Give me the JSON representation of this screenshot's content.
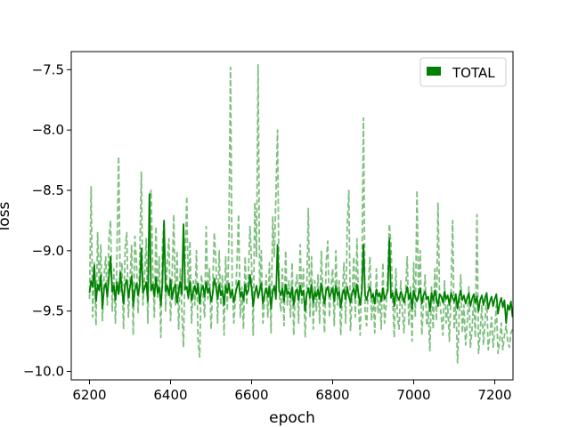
{
  "chart_data": {
    "type": "line",
    "title": "",
    "xlabel": "epoch",
    "ylabel": "loss",
    "xlim": [
      6155,
      7245
    ],
    "ylim": [
      -10.07,
      -7.35
    ],
    "x_ticks": [
      6200,
      6400,
      6600,
      6800,
      7000,
      7200
    ],
    "x_tick_labels": [
      "6200",
      "6400",
      "6600",
      "6800",
      "7000",
      "7200"
    ],
    "y_ticks": [
      -7.5,
      -8.0,
      -8.5,
      -9.0,
      -9.5,
      -10.0
    ],
    "y_tick_labels": [
      "−7.5",
      "−8.0",
      "−8.5",
      "−9.0",
      "−9.5",
      "−10.0"
    ],
    "grid": false,
    "legend_position": "top-right",
    "legend": [
      {
        "label": "TOTAL",
        "color": "#008000"
      }
    ],
    "series": [
      {
        "name": "TOTAL",
        "style": "solid",
        "color": "#008000",
        "x_start": 6200,
        "x_step": 4,
        "values": [
          -9.35,
          -9.25,
          -9.3,
          -9.12,
          -9.42,
          -9.28,
          -9.33,
          -9.2,
          -9.48,
          -9.31,
          -9.27,
          -9.38,
          -9.22,
          -9.05,
          -9.34,
          -9.29,
          -9.41,
          -9.26,
          -9.36,
          -9.18,
          -9.32,
          -9.44,
          -9.28,
          -9.24,
          -9.39,
          -9.3,
          -9.21,
          -9.46,
          -9.33,
          -9.27,
          -9.37,
          -9.29,
          -8.98,
          -9.35,
          -9.31,
          -9.26,
          -9.42,
          -8.53,
          -9.33,
          -9.28,
          -9.38,
          -9.22,
          -9.35,
          -9.3,
          -9.45,
          -9.27,
          -8.75,
          -9.34,
          -9.29,
          -9.37,
          -9.24,
          -9.4,
          -9.31,
          -9.28,
          -9.43,
          -9.33,
          -9.26,
          -9.36,
          -8.78,
          -9.32,
          -9.3,
          -9.39,
          -9.25,
          -9.41,
          -9.34,
          -9.29,
          -9.36,
          -9.27,
          -9.44,
          -9.32,
          -9.29,
          -9.38,
          -9.26,
          -9.35,
          -9.31,
          -9.42,
          -9.36,
          -9.23,
          -9.3,
          -9.4,
          -9.28,
          -9.37,
          -9.33,
          -9.45,
          -9.29,
          -9.35,
          -9.27,
          -9.39,
          -9.32,
          -9.43,
          -9.36,
          -9.3,
          -9.25,
          -9.38,
          -9.34,
          -9.41,
          -9.28,
          -9.36,
          -9.33,
          -9.2,
          -9.31,
          -9.46,
          -9.35,
          -9.29,
          -9.39,
          -9.33,
          -9.27,
          -9.44,
          -9.36,
          -9.31,
          -9.38,
          -9.3,
          -9.48,
          -9.34,
          -9.29,
          -9.4,
          -8.95,
          -9.33,
          -9.37,
          -9.31,
          -9.42,
          -9.28,
          -9.36,
          -9.34,
          -9.39,
          -9.3,
          -9.45,
          -9.35,
          -9.32,
          -9.41,
          -9.29,
          -9.37,
          -9.33,
          -9.5,
          -9.36,
          -9.31,
          -9.39,
          -9.28,
          -9.43,
          -9.34,
          -9.38,
          -9.32,
          -9.4,
          -9.27,
          -9.36,
          -9.44,
          -9.33,
          -9.3,
          -9.38,
          -9.35,
          -9.31,
          -9.42,
          -9.29,
          -9.37,
          -9.34,
          -9.47,
          -9.36,
          -9.32,
          -9.4,
          -9.3,
          -9.38,
          -9.43,
          -9.35,
          -9.31,
          -9.39,
          -9.28,
          -9.36,
          -9.45,
          -9.33,
          -8.95,
          -9.37,
          -9.41,
          -9.34,
          -9.3,
          -9.39,
          -9.36,
          -9.44,
          -9.32,
          -9.38,
          -9.35,
          -9.42,
          -9.31,
          -9.4,
          -9.37,
          -9.33,
          -8.9,
          -9.39,
          -9.35,
          -9.46,
          -9.32,
          -9.38,
          -9.41,
          -9.34,
          -9.37,
          -9.43,
          -9.36,
          -9.3,
          -9.4,
          -9.35,
          -9.48,
          -9.33,
          -9.38,
          -9.42,
          -9.36,
          -9.31,
          -9.44,
          -9.37,
          -9.34,
          -9.4,
          -9.38,
          -9.5,
          -9.35,
          -9.41,
          -9.33,
          -9.39,
          -9.46,
          -9.36,
          -9.38,
          -9.43,
          -9.34,
          -9.4,
          -9.37,
          -9.45,
          -9.35,
          -9.39,
          -9.42,
          -9.36,
          -9.48,
          -9.38,
          -9.33,
          -9.41,
          -9.37,
          -9.44,
          -9.39,
          -9.35,
          -9.46,
          -9.4,
          -9.36,
          -9.43,
          -9.38,
          -9.5,
          -9.41,
          -9.37,
          -9.45,
          -9.39,
          -9.35,
          -9.48,
          -9.42,
          -9.38,
          -9.46,
          -9.4,
          -9.36,
          -9.52,
          -9.44,
          -9.39,
          -9.47,
          -9.41,
          -9.6,
          -9.45,
          -9.49,
          -9.42,
          -9.55
        ]
      },
      {
        "name": "",
        "style": "dashed",
        "color": "#7fbf7f",
        "x_start": 6200,
        "x_step": 4,
        "values": [
          -9.4,
          -8.47,
          -9.55,
          -9.1,
          -9.62,
          -8.85,
          -9.3,
          -8.95,
          -9.58,
          -9.2,
          -9.05,
          -9.45,
          -8.9,
          -8.75,
          -9.5,
          -9.15,
          -9.6,
          -9.0,
          -8.22,
          -9.35,
          -9.1,
          -9.65,
          -8.98,
          -8.85,
          -9.55,
          -9.25,
          -8.95,
          -9.7,
          -8.88,
          -9.1,
          -9.52,
          -9.05,
          -8.35,
          -9.45,
          -9.2,
          -8.9,
          -9.6,
          -8.6,
          -8.5,
          -9.15,
          -9.55,
          -8.8,
          -9.4,
          -9.05,
          -9.72,
          -8.95,
          -8.75,
          -9.5,
          -9.1,
          -8.9,
          -9.58,
          -9.2,
          -8.7,
          -9.45,
          -9.0,
          -9.65,
          -9.15,
          -9.5,
          -9.8,
          -9.05,
          -8.55,
          -9.4,
          -8.92,
          -9.6,
          -9.25,
          -9.45,
          -9.0,
          -9.75,
          -9.88,
          -9.2,
          -9.35,
          -9.55,
          -8.8,
          -9.4,
          -9.15,
          -9.65,
          -9.3,
          -8.85,
          -9.1,
          -9.6,
          -9.0,
          -9.45,
          -9.2,
          -9.7,
          -9.05,
          -9.5,
          -8.9,
          -7.48,
          -9.25,
          -9.6,
          -9.4,
          -9.1,
          -8.7,
          -9.55,
          -9.3,
          -9.65,
          -9.05,
          -9.45,
          -9.2,
          -8.8,
          -9.1,
          -9.7,
          -8.6,
          -9.05,
          -7.46,
          -9.35,
          -9.0,
          -9.6,
          -9.4,
          -9.2,
          -9.55,
          -9.1,
          -9.68,
          -8.72,
          -9.05,
          -8.55,
          -8.0,
          -9.35,
          -9.5,
          -9.15,
          -9.62,
          -9.0,
          -9.45,
          -9.25,
          -9.55,
          -9.1,
          -9.7,
          -9.3,
          -9.2,
          -9.6,
          -8.95,
          -9.45,
          -9.15,
          -9.72,
          -9.35,
          -8.65,
          -9.55,
          -9.05,
          -9.65,
          -9.25,
          -9.5,
          -9.2,
          -9.6,
          -9.0,
          -9.4,
          -9.68,
          -9.1,
          -8.92,
          -9.55,
          -9.3,
          -9.15,
          -9.62,
          -9.0,
          -9.45,
          -9.25,
          -9.7,
          -9.35,
          -9.1,
          -9.6,
          -8.8,
          -8.5,
          -9.66,
          -9.4,
          -9.05,
          -9.55,
          -8.9,
          -9.45,
          -9.7,
          -9.2,
          -7.9,
          -9.5,
          -9.62,
          -9.3,
          -9.05,
          -9.58,
          -9.35,
          -9.68,
          -9.15,
          -9.52,
          -9.4,
          -9.65,
          -9.1,
          -9.6,
          -9.45,
          -9.2,
          -8.78,
          -8.95,
          -9.4,
          -9.72,
          -9.15,
          -9.55,
          -9.65,
          -9.25,
          -9.5,
          -9.68,
          -9.35,
          -9.05,
          -9.62,
          -9.3,
          -9.75,
          -9.1,
          -9.55,
          -8.5,
          -9.4,
          -9.0,
          -9.7,
          -9.45,
          -9.2,
          -9.62,
          -9.5,
          -9.83,
          -9.3,
          -9.65,
          -9.15,
          -9.58,
          -8.6,
          -9.4,
          -9.55,
          -9.7,
          -9.25,
          -9.6,
          -9.45,
          -9.75,
          -9.35,
          -8.75,
          -9.65,
          -9.4,
          -9.93,
          -9.55,
          -9.2,
          -9.68,
          -9.45,
          -9.78,
          -9.6,
          -9.3,
          -9.8,
          -9.65,
          -9.4,
          -9.72,
          -8.7,
          -9.85,
          -9.68,
          -9.45,
          -9.78,
          -9.6,
          -9.35,
          -9.82,
          -9.7,
          -9.55,
          -9.8,
          -9.65,
          -9.45,
          -9.85,
          -9.75,
          -9.6,
          -9.82,
          -9.7,
          -9.62,
          -9.75,
          -9.8,
          -9.68,
          -9.65
        ]
      }
    ]
  }
}
